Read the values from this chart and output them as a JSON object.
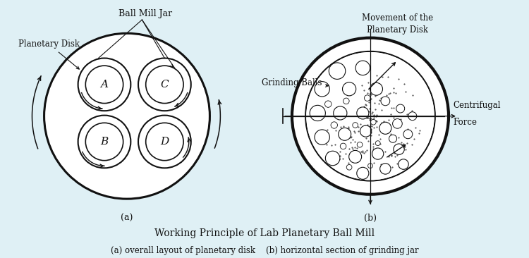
{
  "bg_color": "#dff0f5",
  "fig_bg_color": "#f5f5f5",
  "title": "Working Principle of Lab Planetary Ball Mill",
  "subtitle_a": "(a) overall layout of planetary disk",
  "subtitle_b": "(b) horizontal section of grinding jar",
  "text_color": "#111111",
  "line_color": "#111111"
}
